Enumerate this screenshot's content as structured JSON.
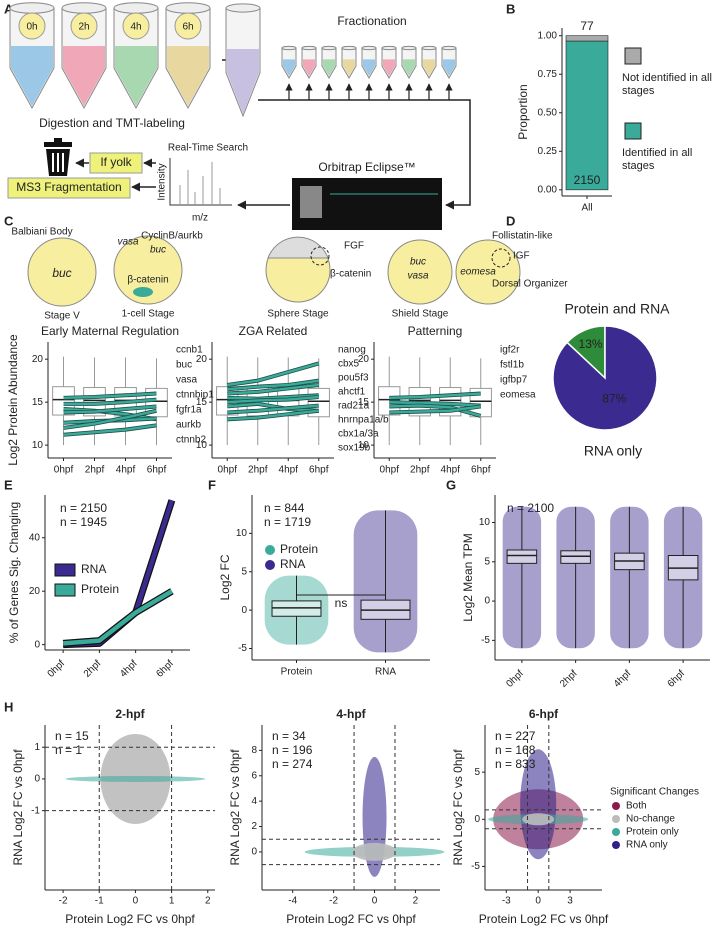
{
  "panel_labels": [
    "A",
    "B",
    "C",
    "D",
    "E",
    "F",
    "G",
    "H"
  ],
  "diagram_a": {
    "stages": [
      "0h",
      "2h",
      "4h",
      "6h"
    ],
    "step1": "Digestion and TMT-labeling",
    "step2": "Fractionation",
    "instrument": "Orbitrap Eclipse™",
    "search": "Real-Time Search",
    "spectrum_y": "Intensity",
    "spectrum_x": "m/z",
    "decision": "If yolk",
    "action": "MS3 Fragmentation"
  },
  "diagram_c": {
    "balbiani": "Balbiani Body",
    "buc_a": "buc",
    "stage_v": "Stage V",
    "vasa_a": "vasa",
    "cyclinb": "CyclinB/aurkb",
    "buc_b": "buc",
    "catenin_a": "β-catenin",
    "one_cell": "1-cell Stage",
    "fgf": "FGF",
    "catenin_b": "β-catenin",
    "sphere": "Sphere Stage",
    "buc_c": "buc",
    "vasa_c": "vasa",
    "eomesa": "eomesa",
    "follistatin": "Follistatin-like",
    "igf": "IGF",
    "organizer": "Dorsal Organizer",
    "shield": "Shield Stage"
  },
  "chart_data": [
    {
      "type": "stacked",
      "categories": [
        "All"
      ],
      "ylabel": "Proportion",
      "ylim": [
        -0.04,
        1.05
      ],
      "yticks": [
        {
          "value": 0,
          "label": "0.00"
        },
        {
          "value": 0.25,
          "label": "0.25"
        },
        {
          "value": 0.5,
          "label": "0.50"
        },
        {
          "value": 0.75,
          "label": "0.75"
        },
        {
          "value": 1,
          "label": "1.00"
        }
      ],
      "series": [
        {
          "name": "Identified in all stages",
          "color": "#3aaa9a",
          "values": [
            0.9654
          ],
          "count": 2150
        },
        {
          "name": "Not identified in all stages",
          "color": "#aaaaaa",
          "values": [
            0.0346
          ],
          "count": 77
        }
      ]
    },
    {
      "type": "boxline",
      "title": "Early Maternal Regulation",
      "ylabel": "Log2 Protein Abundance",
      "categories": [
        "0hpf",
        "2hpf",
        "4hpf",
        "6hpf"
      ],
      "ylim": [
        8.5,
        22
      ],
      "yticks": [
        10,
        15,
        20
      ],
      "color": "#3aaa9a",
      "boxes": [
        {
          "whislo": 10,
          "q1": 13.5,
          "med": 15.3,
          "q3": 16.8,
          "whishi": 20.3
        },
        {
          "whislo": 10,
          "q1": 13.4,
          "med": 15.2,
          "q3": 16.7,
          "whishi": 20.2
        },
        {
          "whislo": 10,
          "q1": 13.4,
          "med": 15.2,
          "q3": 16.7,
          "whishi": 20.2
        },
        {
          "whislo": 10,
          "q1": 13.3,
          "med": 15.1,
          "q3": 16.6,
          "whishi": 20.1
        }
      ],
      "series": [
        {
          "name": "ccnb1",
          "values": [
            15.5,
            15.6,
            15.8,
            16.0
          ]
        },
        {
          "name": "buc",
          "values": [
            14.8,
            14.8,
            15.0,
            15.3
          ]
        },
        {
          "name": "vasa",
          "values": [
            14.2,
            14.0,
            13.6,
            13.0
          ]
        },
        {
          "name": "ctnnbip1",
          "values": [
            13.8,
            13.9,
            14.2,
            14.5
          ]
        },
        {
          "name": "fgfr1a",
          "values": [
            12.6,
            12.8,
            12.9,
            13.1
          ]
        },
        {
          "name": "aurkb",
          "values": [
            12.0,
            12.5,
            13.2,
            14.0
          ]
        },
        {
          "name": "ctnnb2",
          "values": [
            11.2,
            11.5,
            11.8,
            12.3
          ]
        }
      ]
    },
    {
      "type": "boxline",
      "title": "ZGA Related",
      "categories": [
        "0hpf",
        "2hpf",
        "4hpf",
        "6hpf"
      ],
      "ylim": [
        8.5,
        22
      ],
      "yticks": [
        10,
        15,
        20
      ],
      "color": "#3aaa9a",
      "boxes": [
        {
          "whislo": 10,
          "q1": 13.5,
          "med": 15.3,
          "q3": 16.8,
          "whishi": 20.3
        },
        {
          "whislo": 10,
          "q1": 13.4,
          "med": 15.2,
          "q3": 16.7,
          "whishi": 20.2
        },
        {
          "whislo": 10,
          "q1": 13.4,
          "med": 15.2,
          "q3": 16.7,
          "whishi": 20.2
        },
        {
          "whislo": 10,
          "q1": 13.3,
          "med": 15.1,
          "q3": 16.6,
          "whishi": 20.1
        }
      ],
      "series": [
        {
          "name": "nanog",
          "values": [
            17.0,
            17.5,
            18.5,
            19.5
          ]
        },
        {
          "name": "cbx5",
          "values": [
            16.5,
            16.8,
            17.0,
            17.5
          ]
        },
        {
          "name": "pou5f3",
          "values": [
            16.0,
            16.2,
            16.6,
            17.0
          ]
        },
        {
          "name": "ahctf1",
          "values": [
            15.5,
            15.4,
            15.6,
            15.8
          ]
        },
        {
          "name": "rad21a",
          "values": [
            15.0,
            15.2,
            15.3,
            15.6
          ]
        },
        {
          "name": "hnrnpa1a/b",
          "values": [
            14.5,
            14.8,
            14.2,
            14.0
          ]
        },
        {
          "name": "cbx1a/3a",
          "values": [
            13.8,
            14.0,
            14.3,
            14.6
          ]
        },
        {
          "name": "sox19b",
          "values": [
            13.0,
            13.2,
            13.6,
            14.0
          ]
        }
      ]
    },
    {
      "type": "boxline",
      "title": "Patterning",
      "categories": [
        "0hpf",
        "2hpf",
        "4hpf",
        "6hpf"
      ],
      "ylim": [
        8.5,
        22
      ],
      "yticks": [
        10,
        15,
        20
      ],
      "color": "#3aaa9a",
      "boxes": [
        {
          "whislo": 10,
          "q1": 13.5,
          "med": 15.3,
          "q3": 16.8,
          "whishi": 20.3
        },
        {
          "whislo": 10,
          "q1": 13.4,
          "med": 15.2,
          "q3": 16.7,
          "whishi": 20.2
        },
        {
          "whislo": 10,
          "q1": 13.4,
          "med": 15.2,
          "q3": 16.7,
          "whishi": 20.2
        },
        {
          "whislo": 10,
          "q1": 13.3,
          "med": 15.1,
          "q3": 16.6,
          "whishi": 20.1
        }
      ],
      "series": [
        {
          "name": "igf2r",
          "values": [
            15.5,
            15.6,
            15.8,
            16.0
          ]
        },
        {
          "name": "fstl1b",
          "values": [
            15.0,
            14.9,
            14.8,
            14.6
          ]
        },
        {
          "name": "igfbp7",
          "values": [
            14.5,
            14.6,
            14.4,
            13.4
          ]
        },
        {
          "name": "eomesa",
          "values": [
            13.8,
            13.9,
            14.0,
            14.5
          ]
        }
      ]
    },
    {
      "type": "pie",
      "categories": [
        "Protein and RNA",
        "RNA only"
      ],
      "values": [
        13,
        87
      ],
      "value_labels": [
        "13%",
        "87%"
      ],
      "colors": [
        "#2e8b3a",
        "#3b2a8f"
      ]
    },
    {
      "type": "line",
      "ylabel": "% of Genes Sig. Changing",
      "categories": [
        "0hpf",
        "2hpf",
        "4hpf",
        "6hpf"
      ],
      "ylim": [
        -2,
        56
      ],
      "yticks": [
        0,
        20,
        40
      ],
      "series": [
        {
          "name": "RNA",
          "color": "#3b2a8f",
          "values": [
            0,
            0.5,
            12,
            54
          ]
        },
        {
          "name": "Protein",
          "color": "#3aaa9a",
          "values": [
            0.5,
            1.5,
            12,
            20
          ]
        }
      ],
      "annotations": [
        {
          "text": "n = 2150",
          "color": "#3aaa9a"
        },
        {
          "text": "n = 1945",
          "color": "#3b2a8f"
        }
      ]
    },
    {
      "type": "box",
      "ylabel": "Log2 FC",
      "categories": [
        "Protein",
        "RNA"
      ],
      "colors": [
        "#3aaa9a",
        "#3b2a8f"
      ],
      "ylim": [
        -6.5,
        15
      ],
      "yticks": [
        -5,
        0,
        5,
        10
      ],
      "boxes": [
        {
          "whislo": -4.5,
          "q1": -0.8,
          "med": 0.3,
          "q3": 1.2,
          "whishi": 4.5
        },
        {
          "whislo": -5.5,
          "q1": -1.2,
          "med": 0,
          "q3": 1.3,
          "whishi": 13
        }
      ],
      "annotations": [
        {
          "text": "n = 844",
          "color": "#3aaa9a"
        },
        {
          "text": "n = 1719",
          "color": "#3b2a8f"
        }
      ],
      "significance": "ns"
    },
    {
      "type": "box",
      "ylabel": "Log2 Mean TPM",
      "categories": [
        "0hpf",
        "2hpf",
        "4hpf",
        "6hpf"
      ],
      "colors": [
        "#3b2a8f",
        "#3b2a8f",
        "#3b2a8f",
        "#3b2a8f"
      ],
      "ylim": [
        -7.5,
        13.5
      ],
      "yticks": [
        -5,
        0,
        5,
        10
      ],
      "boxes": [
        {
          "whislo": -6,
          "q1": 4.8,
          "med": 5.8,
          "q3": 6.5,
          "whishi": 12
        },
        {
          "whislo": -6,
          "q1": 4.8,
          "med": 5.7,
          "q3": 6.4,
          "whishi": 12
        },
        {
          "whislo": -6,
          "q1": 4.0,
          "med": 5.1,
          "q3": 6.1,
          "whishi": 12
        },
        {
          "whislo": -6,
          "q1": 2.7,
          "med": 4.2,
          "q3": 5.8,
          "whishi": 12
        }
      ],
      "annotations": [
        {
          "text": "n = 2100",
          "color": "#3b2a8f"
        }
      ]
    },
    {
      "type": "scatter",
      "title": "2-hpf",
      "xlabel": "Protein Log2 FC vs 0hpf",
      "ylabel": "RNA Log2 FC vs 0hpf",
      "xlim": [
        -2.5,
        2.2
      ],
      "xticks": [
        -2,
        -1,
        0,
        1,
        2
      ],
      "ylim": [
        -3.5,
        1.7
      ],
      "yticks": [
        -1,
        0,
        1
      ],
      "thresholds": [
        -1,
        1
      ],
      "annotations": [
        {
          "text": "n = 15",
          "color": "#3aaa9a"
        },
        {
          "text": "n = 1",
          "color": "#2e1f8a"
        }
      ]
    },
    {
      "type": "scatter",
      "title": "4-hpf",
      "xlabel": "Protein Log2 FC vs 0hpf",
      "ylabel": "RNA Log2 FC vs 0hpf",
      "xlim": [
        -5.5,
        3.2
      ],
      "xticks": [
        -4,
        -2,
        0,
        2
      ],
      "ylim": [
        -3,
        10
      ],
      "yticks": [
        0,
        2,
        4,
        6,
        8
      ],
      "thresholds": [
        -1,
        1
      ],
      "annotations": [
        {
          "text": "n = 34",
          "color": "#8b1a4a"
        },
        {
          "text": "n = 196",
          "color": "#3aaa9a"
        },
        {
          "text": "n = 274",
          "color": "#2e1f8a"
        }
      ]
    },
    {
      "type": "scatter",
      "title": "6-hpf",
      "xlabel": "Protein Log2 FC vs 0hpf",
      "ylabel": "RNA Log2 FC vs 0hpf",
      "xlim": [
        -5,
        6
      ],
      "xticks": [
        -3,
        0,
        3
      ],
      "ylim": [
        -7.5,
        10
      ],
      "yticks": [
        -5,
        0,
        5
      ],
      "thresholds": [
        -1,
        1
      ],
      "annotations": [
        {
          "text": "n = 227",
          "color": "#8b1a4a"
        },
        {
          "text": "n = 168",
          "color": "#3aaa9a"
        },
        {
          "text": "n = 833",
          "color": "#2e1f8a"
        }
      ],
      "legend": {
        "title": "Significant Changes",
        "items": [
          {
            "name": "Both",
            "color": "#8b1a4a"
          },
          {
            "name": "No-change",
            "color": "#bbbbbb"
          },
          {
            "name": "Protein only",
            "color": "#3aaa9a"
          },
          {
            "name": "RNA only",
            "color": "#2e1f8a"
          }
        ]
      }
    }
  ]
}
